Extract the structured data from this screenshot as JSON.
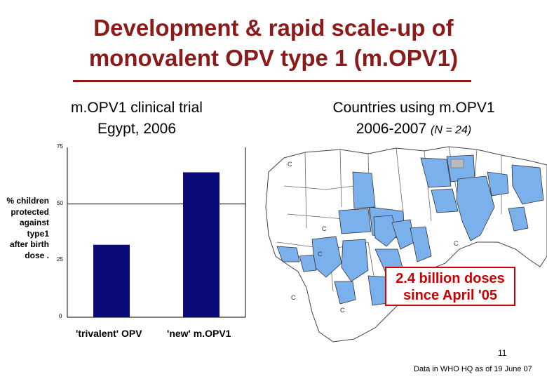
{
  "slide": {
    "title_line1": "Development & rapid scale-up of",
    "title_line2": "monovalent OPV type 1 (m.OPV1)",
    "page_number": "11",
    "footnote": "Data in WHO HQ as of 19 June 07"
  },
  "left_panel": {
    "heading_line1": "m.OPV1 clinical trial",
    "heading_line2": "Egypt, 2006"
  },
  "right_panel": {
    "heading_line1": "Countries using m.OPV1",
    "heading_line2": "2006-2007",
    "heading_n": "(N = 24)",
    "callout_line1": "2.4 billion doses",
    "callout_line2": "since April '05",
    "map_letters": [
      "C",
      "C",
      "C",
      "C",
      "C",
      "C"
    ]
  },
  "colors": {
    "title": "#8b1a1a",
    "bar": "#0a0a7a",
    "map_fill": "#7ab0ec",
    "callout": "#cc0000"
  },
  "chart_data": {
    "type": "bar",
    "categories": [
      "'trivalent' OPV",
      "'new' m.OPV1"
    ],
    "values": [
      32,
      64
    ],
    "ylabel_lines": [
      "% children",
      "protected",
      "against",
      "type1",
      "after birth",
      "dose ."
    ],
    "yticks": [
      "0",
      "25",
      "50",
      "75"
    ],
    "ylim": [
      0,
      75
    ],
    "gridlines": [
      50
    ],
    "grid": "single line at 50"
  }
}
